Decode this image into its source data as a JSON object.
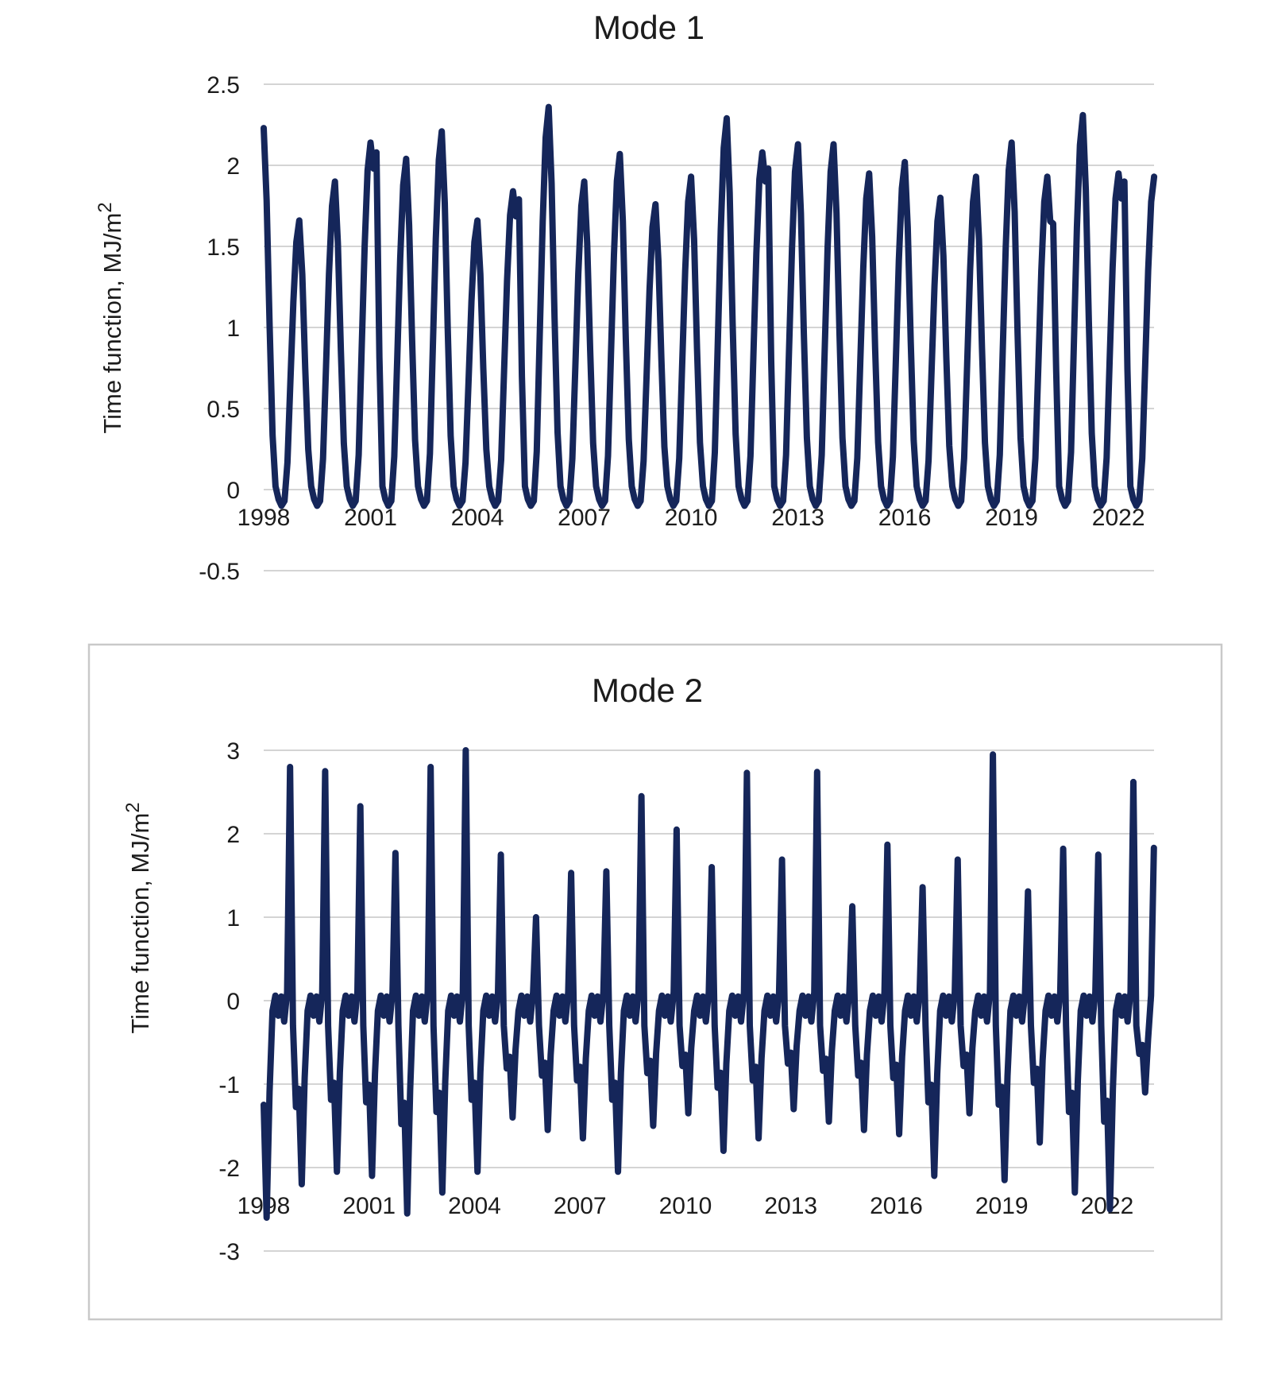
{
  "figure": {
    "background": "#ffffff",
    "line_color": "#15265a",
    "gridline_color": "#d4d4d4",
    "frame_color": "#c9c9c9",
    "text_color": "#1c1c1c"
  },
  "chart_data": [
    {
      "type": "line",
      "title": "Mode 1",
      "ylabel": "Time function, MJ/m²",
      "ylabel_main": "Time function, MJ/m",
      "ylabel_sup": "2",
      "xlabel": "",
      "legend": "none",
      "grid": "horizontal",
      "ylim": [
        -0.5,
        2.5
      ],
      "y_ticks": [
        "2.5",
        "2",
        "1.5",
        "1",
        "0.5",
        "0",
        "-0.5"
      ],
      "y_tick_values": [
        2.5,
        2,
        1.5,
        1,
        0.5,
        0,
        -0.5
      ],
      "x_tick_years": [
        1998,
        2001,
        2004,
        2007,
        2010,
        2013,
        2016,
        2019,
        2022
      ],
      "x_range_years": [
        1998,
        2023
      ],
      "sampling": "monthly",
      "line_color": "#15265a",
      "series": [
        {
          "name": "Mode 1 time function",
          "years": [
            1998,
            1999,
            2000,
            2001,
            2002,
            2003,
            2004,
            2005,
            2006,
            2007,
            2008,
            2009,
            2010,
            2011,
            2012,
            2013,
            2014,
            2015,
            2016,
            2017,
            2018,
            2019,
            2020,
            2021,
            2022
          ],
          "annual_peaks": [
            2.23,
            1.66,
            1.9,
            2.14,
            2.04,
            2.21,
            1.66,
            1.84,
            2.36,
            1.9,
            2.07,
            1.76,
            1.93,
            2.29,
            2.08,
            2.13,
            2.13,
            1.95,
            2.02,
            1.8,
            1.93,
            2.14,
            1.93,
            2.31,
            1.95
          ],
          "double_peaks": {
            "2001": 2.08,
            "2005": 1.79,
            "2012": 1.98,
            "2020": 1.64,
            "2022": 1.9
          },
          "winter_trough_range": [
            -0.1,
            -0.05
          ],
          "monthly_template": [
            [
              "P",
              1.0
            ],
            [
              "P",
              0.8
            ],
            [
              "P",
              0.45
            ],
            [
              "P",
              0.15
            ],
            [
              "abs",
              0.02
            ],
            [
              "abs",
              -0.06
            ],
            [
              "abs",
              -0.1
            ],
            [
              "abs",
              -0.07
            ],
            [
              "Pn",
              0.1
            ],
            [
              "Pn",
              0.4
            ],
            [
              "Pn",
              0.7
            ],
            [
              "Pn",
              0.92
            ]
          ],
          "monthly_template_double": [
            [
              "P",
              1.0
            ],
            [
              "mid",
              -0.13
            ],
            [
              "D",
              1.0
            ],
            [
              "P",
              0.38
            ],
            [
              "abs",
              0.02
            ],
            [
              "abs",
              -0.06
            ],
            [
              "abs",
              -0.1
            ],
            [
              "abs",
              -0.07
            ],
            [
              "Pn",
              0.1
            ],
            [
              "Pn",
              0.4
            ],
            [
              "Pn",
              0.7
            ],
            [
              "Pn",
              0.92
            ]
          ],
          "final_months": [
            1.93
          ]
        }
      ]
    },
    {
      "type": "line",
      "title": "Mode 2",
      "ylabel": "Time function, MJ/m²",
      "ylabel_main": "Time function, MJ/m",
      "ylabel_sup": "2",
      "xlabel": "",
      "legend": "none",
      "grid": "horizontal",
      "ylim": [
        -3,
        3
      ],
      "y_ticks": [
        "3",
        "2",
        "1",
        "0",
        "-1",
        "-2",
        "-3"
      ],
      "y_tick_values": [
        3,
        2,
        1,
        0,
        -1,
        -2,
        -3
      ],
      "x_tick_years": [
        1998,
        2001,
        2004,
        2007,
        2010,
        2013,
        2016,
        2019,
        2022
      ],
      "x_range_years": [
        1998,
        2023
      ],
      "sampling": "monthly",
      "line_color": "#15265a",
      "has_frame": true,
      "series": [
        {
          "name": "Mode 2 time function",
          "years": [
            1998,
            1999,
            2000,
            2001,
            2002,
            2003,
            2004,
            2005,
            2006,
            2007,
            2008,
            2009,
            2010,
            2011,
            2012,
            2013,
            2014,
            2015,
            2016,
            2017,
            2018,
            2019,
            2020,
            2021,
            2022
          ],
          "annual_peaks": [
            2.8,
            2.75,
            2.33,
            1.77,
            2.8,
            3.0,
            1.75,
            1.0,
            1.53,
            1.55,
            2.45,
            2.05,
            1.6,
            2.73,
            1.69,
            2.74,
            1.13,
            1.87,
            1.36,
            1.69,
            2.95,
            1.31,
            1.82,
            1.75,
            2.62
          ],
          "annual_minima": [
            -2.6,
            -2.2,
            -2.05,
            -2.1,
            -2.55,
            -2.3,
            -2.05,
            -1.4,
            -1.55,
            -1.65,
            -2.05,
            -1.5,
            -1.35,
            -1.8,
            -1.65,
            -1.3,
            -1.45,
            -1.55,
            -1.6,
            -2.1,
            -1.35,
            -2.15,
            -1.7,
            -2.3,
            -2.5
          ],
          "end_minimum": -1.1,
          "monthly_template": [
            [
              "M",
              0.48
            ],
            [
              "M",
              1.0
            ],
            [
              "M",
              0.42
            ],
            [
              "abs",
              -0.12
            ],
            [
              "abs",
              0.06
            ],
            [
              "abs",
              -0.18
            ],
            [
              "abs",
              0.05
            ],
            [
              "abs",
              -0.25
            ],
            [
              "abs",
              0.1
            ],
            [
              "P",
              1.0
            ],
            [
              "abs",
              -0.3
            ],
            [
              "Mn",
              0.58
            ]
          ],
          "final_months": [
            -0.53,
            -1.1,
            -0.46,
            0.06,
            1.83
          ]
        }
      ]
    }
  ]
}
